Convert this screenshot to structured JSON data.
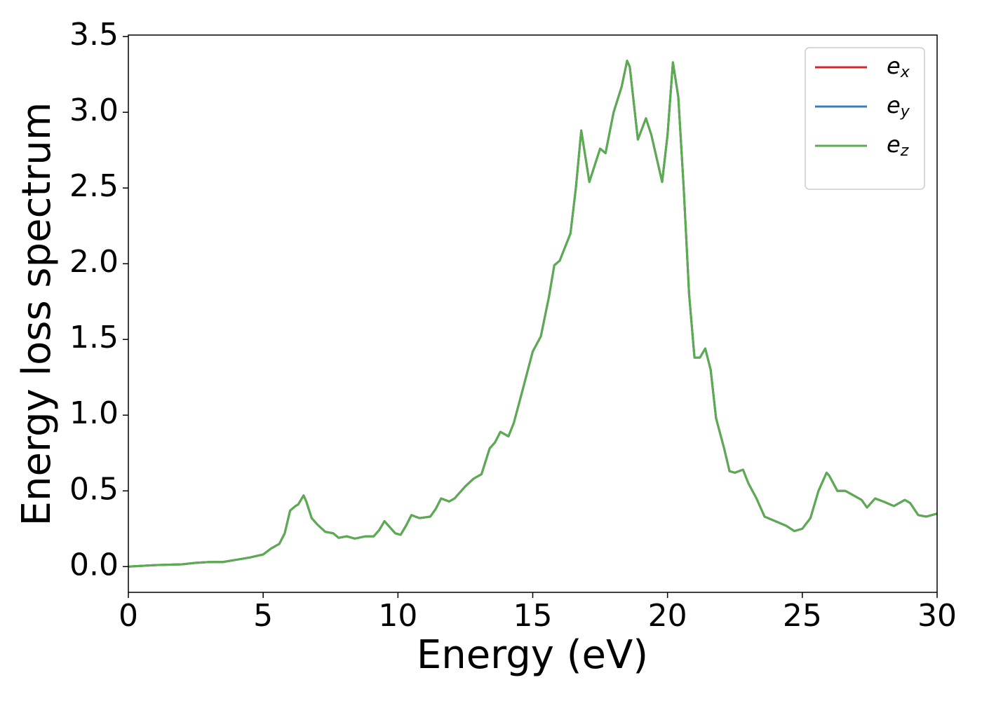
{
  "chart_data": {
    "type": "line",
    "xlabel": "Energy (eV)",
    "ylabel": "Energy loss spectrum",
    "x": [
      0,
      1,
      2,
      2.5,
      3,
      3.5,
      4,
      4.5,
      5,
      5.3,
      5.6,
      5.8,
      6.0,
      6.2,
      6.3,
      6.5,
      6.6,
      6.8,
      7.0,
      7.3,
      7.6,
      7.8,
      8.1,
      8.4,
      8.8,
      9.1,
      9.3,
      9.5,
      9.7,
      9.9,
      10.1,
      10.3,
      10.5,
      10.8,
      11.2,
      11.4,
      11.6,
      11.9,
      12.1,
      12.5,
      12.8,
      13.1,
      13.4,
      13.6,
      13.8,
      14.1,
      14.3,
      14.6,
      15.0,
      15.3,
      15.6,
      15.8,
      16.0,
      16.4,
      16.6,
      16.8,
      17.1,
      17.5,
      17.7,
      18.0,
      18.3,
      18.5,
      18.6,
      18.9,
      19.2,
      19.4,
      19.8,
      20.0,
      20.2,
      20.4,
      20.6,
      20.8,
      21.0,
      21.2,
      21.4,
      21.6,
      21.8,
      22.1,
      22.3,
      22.5,
      22.8,
      23.0,
      23.3,
      23.6,
      24.0,
      24.4,
      24.7,
      25.0,
      25.3,
      25.6,
      25.9,
      26.0,
      26.3,
      26.6,
      26.9,
      27.2,
      27.4,
      27.7,
      28.0,
      28.4,
      28.8,
      29.0,
      29.3,
      29.6,
      30.0
    ],
    "series": [
      {
        "name": "ex",
        "color": "#d62728",
        "values": [
          0.0,
          0.01,
          0.015,
          0.025,
          0.03,
          0.03,
          0.045,
          0.06,
          0.08,
          0.12,
          0.15,
          0.22,
          0.37,
          0.4,
          0.41,
          0.47,
          0.43,
          0.32,
          0.28,
          0.23,
          0.22,
          0.19,
          0.2,
          0.185,
          0.2,
          0.2,
          0.24,
          0.3,
          0.26,
          0.22,
          0.21,
          0.27,
          0.34,
          0.32,
          0.33,
          0.38,
          0.45,
          0.43,
          0.45,
          0.53,
          0.58,
          0.61,
          0.78,
          0.82,
          0.89,
          0.86,
          0.95,
          1.15,
          1.42,
          1.52,
          1.78,
          1.99,
          2.02,
          2.2,
          2.5,
          2.88,
          2.54,
          2.76,
          2.73,
          3.0,
          3.17,
          3.34,
          3.3,
          2.82,
          2.96,
          2.85,
          2.54,
          2.85,
          3.33,
          3.1,
          2.5,
          1.8,
          1.38,
          1.38,
          1.44,
          1.3,
          0.98,
          0.78,
          0.63,
          0.62,
          0.64,
          0.55,
          0.45,
          0.33,
          0.3,
          0.27,
          0.235,
          0.25,
          0.32,
          0.5,
          0.62,
          0.6,
          0.5,
          0.5,
          0.47,
          0.44,
          0.39,
          0.45,
          0.43,
          0.4,
          0.44,
          0.42,
          0.34,
          0.33,
          0.35
        ]
      },
      {
        "name": "ey",
        "color": "#3b7db8",
        "values": [
          0.0,
          0.01,
          0.015,
          0.025,
          0.03,
          0.03,
          0.045,
          0.06,
          0.08,
          0.12,
          0.15,
          0.22,
          0.37,
          0.4,
          0.41,
          0.47,
          0.43,
          0.32,
          0.28,
          0.23,
          0.22,
          0.19,
          0.2,
          0.185,
          0.2,
          0.2,
          0.24,
          0.3,
          0.26,
          0.22,
          0.21,
          0.27,
          0.34,
          0.32,
          0.33,
          0.38,
          0.45,
          0.43,
          0.45,
          0.53,
          0.58,
          0.61,
          0.78,
          0.82,
          0.89,
          0.86,
          0.95,
          1.15,
          1.42,
          1.52,
          1.78,
          1.99,
          2.02,
          2.2,
          2.5,
          2.88,
          2.54,
          2.76,
          2.73,
          3.0,
          3.17,
          3.34,
          3.3,
          2.82,
          2.96,
          2.85,
          2.54,
          2.85,
          3.33,
          3.1,
          2.5,
          1.8,
          1.38,
          1.38,
          1.44,
          1.3,
          0.98,
          0.78,
          0.63,
          0.62,
          0.64,
          0.55,
          0.45,
          0.33,
          0.3,
          0.27,
          0.235,
          0.25,
          0.32,
          0.5,
          0.62,
          0.6,
          0.5,
          0.5,
          0.47,
          0.44,
          0.39,
          0.45,
          0.43,
          0.4,
          0.44,
          0.42,
          0.34,
          0.33,
          0.35
        ]
      },
      {
        "name": "ez",
        "color": "#5aad4f",
        "values": [
          0.0,
          0.01,
          0.015,
          0.025,
          0.03,
          0.03,
          0.045,
          0.06,
          0.08,
          0.12,
          0.15,
          0.22,
          0.37,
          0.4,
          0.41,
          0.47,
          0.43,
          0.32,
          0.28,
          0.23,
          0.22,
          0.19,
          0.2,
          0.185,
          0.2,
          0.2,
          0.24,
          0.3,
          0.26,
          0.22,
          0.21,
          0.27,
          0.34,
          0.32,
          0.33,
          0.38,
          0.45,
          0.43,
          0.45,
          0.53,
          0.58,
          0.61,
          0.78,
          0.82,
          0.89,
          0.86,
          0.95,
          1.15,
          1.42,
          1.52,
          1.78,
          1.99,
          2.02,
          2.2,
          2.5,
          2.88,
          2.54,
          2.76,
          2.73,
          3.0,
          3.17,
          3.34,
          3.3,
          2.82,
          2.96,
          2.85,
          2.54,
          2.85,
          3.33,
          3.1,
          2.5,
          1.8,
          1.38,
          1.38,
          1.44,
          1.3,
          0.98,
          0.78,
          0.63,
          0.62,
          0.64,
          0.55,
          0.45,
          0.33,
          0.3,
          0.27,
          0.235,
          0.25,
          0.32,
          0.5,
          0.62,
          0.6,
          0.5,
          0.5,
          0.47,
          0.44,
          0.39,
          0.45,
          0.43,
          0.4,
          0.44,
          0.42,
          0.34,
          0.33,
          0.35
        ]
      }
    ],
    "xlim": [
      0,
      30
    ],
    "xticks": [
      0,
      5,
      10,
      15,
      20,
      25,
      30
    ],
    "ylim": [
      -0.17,
      3.51
    ],
    "yticks": [
      {
        "value": 0,
        "label": "0.0"
      },
      0.5,
      {
        "value": 1,
        "label": "1.0"
      },
      1.5,
      {
        "value": 2,
        "label": "2.0"
      },
      2.5,
      {
        "value": 3,
        "label": "3.0"
      },
      3.5
    ],
    "legend": "upper right"
  }
}
